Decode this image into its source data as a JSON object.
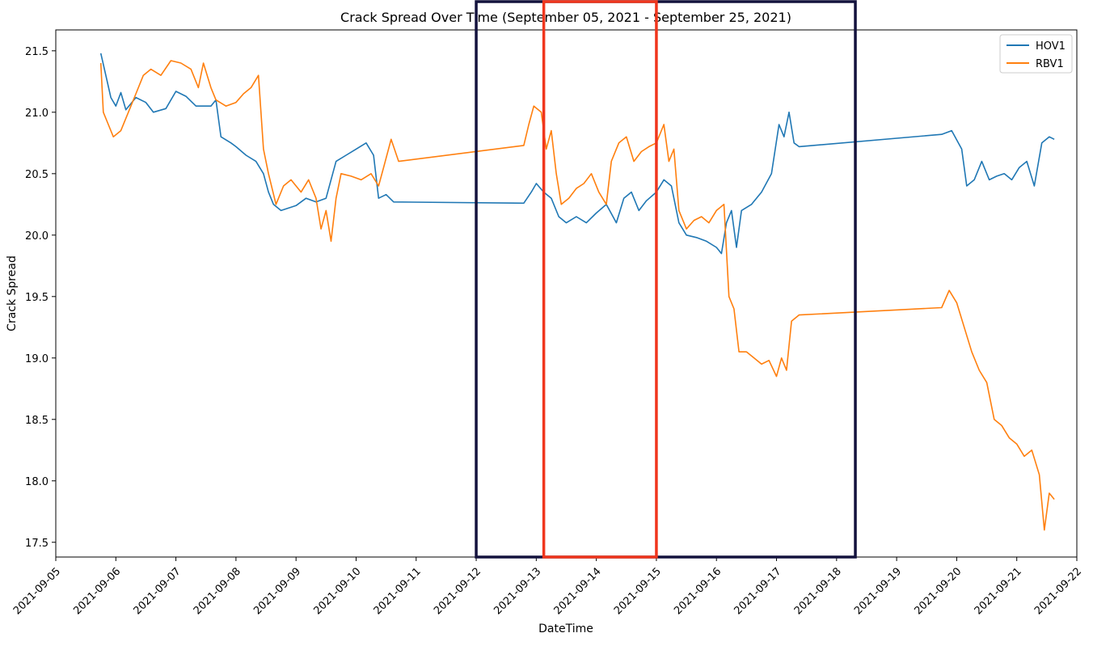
{
  "chart_data": {
    "type": "line",
    "title": "Crack Spread Over Time (September 05, 2021 - September 25, 2021)",
    "xlabel": "DateTime",
    "ylabel": "Crack Spread",
    "x_ticks": [
      "2021-09-05",
      "2021-09-06",
      "2021-09-07",
      "2021-09-08",
      "2021-09-09",
      "2021-09-10",
      "2021-09-11",
      "2021-09-12",
      "2021-09-13",
      "2021-09-14",
      "2021-09-15",
      "2021-09-16",
      "2021-09-17",
      "2021-09-18",
      "2021-09-19",
      "2021-09-20",
      "2021-09-21",
      "2021-09-22"
    ],
    "y_ticks": [
      "17.5",
      "18.0",
      "18.5",
      "19.0",
      "19.5",
      "20.0",
      "20.5",
      "21.0",
      "21.5"
    ],
    "xlim": [
      "2021-09-05",
      "2021-09-22"
    ],
    "ylim": [
      17.38,
      21.67
    ],
    "legend_placement": "top-right",
    "grid": false,
    "series": [
      {
        "name": "HOV1",
        "color": "#1f77b4",
        "points": [
          [
            "2021-09-05 18:00",
            21.48
          ],
          [
            "2021-09-05 20:00",
            21.3
          ],
          [
            "2021-09-05 22:00",
            21.12
          ],
          [
            "2021-09-06 00:00",
            21.05
          ],
          [
            "2021-09-06 02:00",
            21.16
          ],
          [
            "2021-09-06 04:00",
            21.02
          ],
          [
            "2021-09-06 08:00",
            21.12
          ],
          [
            "2021-09-06 12:00",
            21.08
          ],
          [
            "2021-09-06 15:00",
            21.0
          ],
          [
            "2021-09-06 20:00",
            21.03
          ],
          [
            "2021-09-07 00:00",
            21.17
          ],
          [
            "2021-09-07 04:00",
            21.13
          ],
          [
            "2021-09-07 08:00",
            21.05
          ],
          [
            "2021-09-07 11:00",
            21.05
          ],
          [
            "2021-09-07 14:00",
            21.05
          ],
          [
            "2021-09-07 16:00",
            21.1
          ],
          [
            "2021-09-07 18:00",
            20.8
          ],
          [
            "2021-09-07 22:00",
            20.75
          ],
          [
            "2021-09-08 00:00",
            20.72
          ],
          [
            "2021-09-08 04:00",
            20.65
          ],
          [
            "2021-09-08 08:00",
            20.6
          ],
          [
            "2021-09-08 11:00",
            20.5
          ],
          [
            "2021-09-08 13:00",
            20.35
          ],
          [
            "2021-09-08 15:00",
            20.25
          ],
          [
            "2021-09-08 18:00",
            20.2
          ],
          [
            "2021-09-09 00:00",
            20.24
          ],
          [
            "2021-09-09 04:00",
            20.3
          ],
          [
            "2021-09-09 08:00",
            20.27
          ],
          [
            "2021-09-09 12:00",
            20.3
          ],
          [
            "2021-09-09 16:00",
            20.6
          ],
          [
            "2021-09-09 20:00",
            20.65
          ],
          [
            "2021-09-10 00:00",
            20.7
          ],
          [
            "2021-09-10 04:00",
            20.75
          ],
          [
            "2021-09-10 07:00",
            20.65
          ],
          [
            "2021-09-10 09:00",
            20.3
          ],
          [
            "2021-09-10 12:00",
            20.33
          ],
          [
            "2021-09-10 15:00",
            20.27
          ],
          [
            "2021-09-12 19:00",
            20.26
          ],
          [
            "2021-09-12 22:00",
            20.35
          ],
          [
            "2021-09-13 00:00",
            20.42
          ],
          [
            "2021-09-13 03:00",
            20.35
          ],
          [
            "2021-09-13 06:00",
            20.3
          ],
          [
            "2021-09-13 09:00",
            20.15
          ],
          [
            "2021-09-13 12:00",
            20.1
          ],
          [
            "2021-09-13 16:00",
            20.15
          ],
          [
            "2021-09-13 20:00",
            20.1
          ],
          [
            "2021-09-14 00:00",
            20.18
          ],
          [
            "2021-09-14 04:00",
            20.25
          ],
          [
            "2021-09-14 08:00",
            20.1
          ],
          [
            "2021-09-14 11:00",
            20.3
          ],
          [
            "2021-09-14 14:00",
            20.35
          ],
          [
            "2021-09-14 17:00",
            20.2
          ],
          [
            "2021-09-14 20:00",
            20.28
          ],
          [
            "2021-09-15 00:00",
            20.35
          ],
          [
            "2021-09-15 03:00",
            20.45
          ],
          [
            "2021-09-15 06:00",
            20.4
          ],
          [
            "2021-09-15 09:00",
            20.1
          ],
          [
            "2021-09-15 12:00",
            20.0
          ],
          [
            "2021-09-15 16:00",
            19.98
          ],
          [
            "2021-09-15 20:00",
            19.95
          ],
          [
            "2021-09-16 00:00",
            19.9
          ],
          [
            "2021-09-16 02:00",
            19.85
          ],
          [
            "2021-09-16 04:00",
            20.1
          ],
          [
            "2021-09-16 06:00",
            20.2
          ],
          [
            "2021-09-16 08:00",
            19.9
          ],
          [
            "2021-09-16 10:00",
            20.2
          ],
          [
            "2021-09-16 14:00",
            20.25
          ],
          [
            "2021-09-16 18:00",
            20.35
          ],
          [
            "2021-09-16 22:00",
            20.5
          ],
          [
            "2021-09-17 01:00",
            20.9
          ],
          [
            "2021-09-17 03:00",
            20.8
          ],
          [
            "2021-09-17 05:00",
            21.0
          ],
          [
            "2021-09-17 07:00",
            20.75
          ],
          [
            "2021-09-17 09:00",
            20.72
          ],
          [
            "2021-09-19 18:00",
            20.82
          ],
          [
            "2021-09-19 22:00",
            20.85
          ],
          [
            "2021-09-20 02:00",
            20.7
          ],
          [
            "2021-09-20 04:00",
            20.4
          ],
          [
            "2021-09-20 07:00",
            20.45
          ],
          [
            "2021-09-20 10:00",
            20.6
          ],
          [
            "2021-09-20 13:00",
            20.45
          ],
          [
            "2021-09-20 16:00",
            20.48
          ],
          [
            "2021-09-20 19:00",
            20.5
          ],
          [
            "2021-09-20 22:00",
            20.45
          ],
          [
            "2021-09-21 01:00",
            20.55
          ],
          [
            "2021-09-21 04:00",
            20.6
          ],
          [
            "2021-09-21 07:00",
            20.4
          ],
          [
            "2021-09-21 10:00",
            20.75
          ],
          [
            "2021-09-21 13:00",
            20.8
          ],
          [
            "2021-09-21 15:00",
            20.78
          ]
        ]
      },
      {
        "name": "RBV1",
        "color": "#ff7f0e",
        "points": [
          [
            "2021-09-05 18:00",
            21.4
          ],
          [
            "2021-09-05 19:00",
            21.0
          ],
          [
            "2021-09-05 21:00",
            20.9
          ],
          [
            "2021-09-05 23:00",
            20.8
          ],
          [
            "2021-09-06 02:00",
            20.85
          ],
          [
            "2021-09-06 05:00",
            21.0
          ],
          [
            "2021-09-06 08:00",
            21.15
          ],
          [
            "2021-09-06 11:00",
            21.3
          ],
          [
            "2021-09-06 14:00",
            21.35
          ],
          [
            "2021-09-06 18:00",
            21.3
          ],
          [
            "2021-09-06 22:00",
            21.42
          ],
          [
            "2021-09-07 02:00",
            21.4
          ],
          [
            "2021-09-07 06:00",
            21.35
          ],
          [
            "2021-09-07 09:00",
            21.2
          ],
          [
            "2021-09-07 11:00",
            21.4
          ],
          [
            "2021-09-07 14:00",
            21.2
          ],
          [
            "2021-09-07 16:00",
            21.1
          ],
          [
            "2021-09-07 20:00",
            21.05
          ],
          [
            "2021-09-08 00:00",
            21.08
          ],
          [
            "2021-09-08 03:00",
            21.15
          ],
          [
            "2021-09-08 06:00",
            21.2
          ],
          [
            "2021-09-08 09:00",
            21.3
          ],
          [
            "2021-09-08 11:00",
            20.7
          ],
          [
            "2021-09-08 13:00",
            20.5
          ],
          [
            "2021-09-08 16:00",
            20.25
          ],
          [
            "2021-09-08 19:00",
            20.4
          ],
          [
            "2021-09-08 22:00",
            20.45
          ],
          [
            "2021-09-09 02:00",
            20.35
          ],
          [
            "2021-09-09 05:00",
            20.45
          ],
          [
            "2021-09-09 08:00",
            20.3
          ],
          [
            "2021-09-09 10:00",
            20.05
          ],
          [
            "2021-09-09 12:00",
            20.2
          ],
          [
            "2021-09-09 14:00",
            19.95
          ],
          [
            "2021-09-09 16:00",
            20.3
          ],
          [
            "2021-09-09 18:00",
            20.5
          ],
          [
            "2021-09-09 22:00",
            20.48
          ],
          [
            "2021-09-10 02:00",
            20.45
          ],
          [
            "2021-09-10 06:00",
            20.5
          ],
          [
            "2021-09-10 09:00",
            20.4
          ],
          [
            "2021-09-10 11:00",
            20.55
          ],
          [
            "2021-09-10 14:00",
            20.78
          ],
          [
            "2021-09-10 17:00",
            20.6
          ],
          [
            "2021-09-12 19:00",
            20.73
          ],
          [
            "2021-09-12 21:00",
            20.9
          ],
          [
            "2021-09-12 23:00",
            21.05
          ],
          [
            "2021-09-13 02:00",
            21.0
          ],
          [
            "2021-09-13 04:00",
            20.7
          ],
          [
            "2021-09-13 06:00",
            20.85
          ],
          [
            "2021-09-13 08:00",
            20.5
          ],
          [
            "2021-09-13 10:00",
            20.25
          ],
          [
            "2021-09-13 13:00",
            20.3
          ],
          [
            "2021-09-13 16:00",
            20.38
          ],
          [
            "2021-09-13 19:00",
            20.42
          ],
          [
            "2021-09-13 22:00",
            20.5
          ],
          [
            "2021-09-14 01:00",
            20.35
          ],
          [
            "2021-09-14 04:00",
            20.25
          ],
          [
            "2021-09-14 06:00",
            20.6
          ],
          [
            "2021-09-14 09:00",
            20.75
          ],
          [
            "2021-09-14 12:00",
            20.8
          ],
          [
            "2021-09-14 15:00",
            20.6
          ],
          [
            "2021-09-14 18:00",
            20.68
          ],
          [
            "2021-09-14 21:00",
            20.72
          ],
          [
            "2021-09-15 00:00",
            20.75
          ],
          [
            "2021-09-15 03:00",
            20.9
          ],
          [
            "2021-09-15 05:00",
            20.6
          ],
          [
            "2021-09-15 07:00",
            20.7
          ],
          [
            "2021-09-15 09:00",
            20.2
          ],
          [
            "2021-09-15 12:00",
            20.05
          ],
          [
            "2021-09-15 15:00",
            20.12
          ],
          [
            "2021-09-15 18:00",
            20.15
          ],
          [
            "2021-09-15 21:00",
            20.1
          ],
          [
            "2021-09-16 00:00",
            20.2
          ],
          [
            "2021-09-16 03:00",
            20.25
          ],
          [
            "2021-09-16 05:00",
            19.5
          ],
          [
            "2021-09-16 07:00",
            19.4
          ],
          [
            "2021-09-16 09:00",
            19.05
          ],
          [
            "2021-09-16 12:00",
            19.05
          ],
          [
            "2021-09-16 15:00",
            19.0
          ],
          [
            "2021-09-16 18:00",
            18.95
          ],
          [
            "2021-09-16 21:00",
            18.98
          ],
          [
            "2021-09-17 00:00",
            18.85
          ],
          [
            "2021-09-17 02:00",
            19.0
          ],
          [
            "2021-09-17 04:00",
            18.9
          ],
          [
            "2021-09-17 06:00",
            19.3
          ],
          [
            "2021-09-17 09:00",
            19.35
          ],
          [
            "2021-09-19 18:00",
            19.41
          ],
          [
            "2021-09-19 21:00",
            19.55
          ],
          [
            "2021-09-20 00:00",
            19.45
          ],
          [
            "2021-09-20 03:00",
            19.25
          ],
          [
            "2021-09-20 06:00",
            19.05
          ],
          [
            "2021-09-20 09:00",
            18.9
          ],
          [
            "2021-09-20 12:00",
            18.8
          ],
          [
            "2021-09-20 15:00",
            18.5
          ],
          [
            "2021-09-20 18:00",
            18.45
          ],
          [
            "2021-09-20 21:00",
            18.35
          ],
          [
            "2021-09-21 00:00",
            18.3
          ],
          [
            "2021-09-21 03:00",
            18.2
          ],
          [
            "2021-09-21 06:00",
            18.25
          ],
          [
            "2021-09-21 09:00",
            18.05
          ],
          [
            "2021-09-21 11:00",
            17.6
          ],
          [
            "2021-09-21 13:00",
            17.9
          ],
          [
            "2021-09-21 15:00",
            17.85
          ]
        ]
      }
    ],
    "highlights": [
      {
        "color": "#13123d",
        "start": "2021-09-12",
        "end": "2021-09-18 07:30"
      },
      {
        "color": "#f0361d",
        "start": "2021-09-13 03:00",
        "end": "2021-09-15 00:00"
      }
    ]
  }
}
